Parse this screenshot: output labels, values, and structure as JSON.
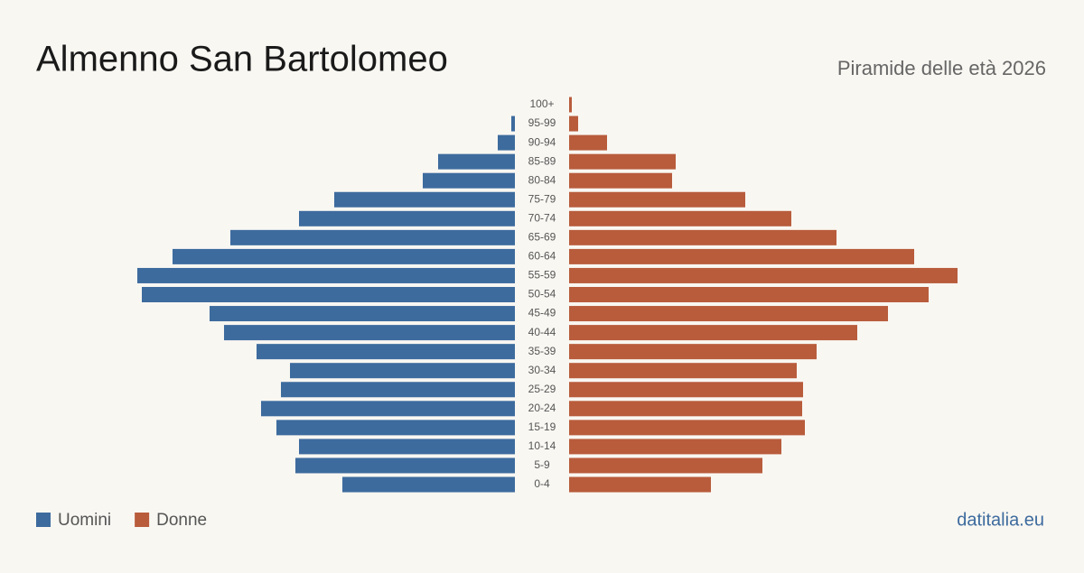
{
  "chart_data": {
    "type": "pyramid",
    "title": "Almenno San Bartolomeo",
    "subtitle": "Piramide delle età 2026",
    "source": "datitalia.eu",
    "categories": [
      "100+",
      "95-99",
      "90-94",
      "85-89",
      "80-84",
      "75-79",
      "70-74",
      "65-69",
      "60-64",
      "55-59",
      "50-54",
      "45-49",
      "40-44",
      "35-39",
      "30-34",
      "25-29",
      "20-24",
      "15-19",
      "10-14",
      "5-9",
      "0-4"
    ],
    "series": [
      {
        "name": "Uomini",
        "color": "#3d6b9e",
        "values": [
          0,
          4,
          19,
          85,
          102,
          200,
          239,
          315,
          379,
          418,
          413,
          338,
          322,
          286,
          249,
          259,
          281,
          264,
          239,
          243,
          191
        ]
      },
      {
        "name": "Donne",
        "color": "#b85c3c",
        "values": [
          3,
          10,
          42,
          118,
          114,
          195,
          246,
          296,
          382,
          430,
          398,
          353,
          319,
          274,
          252,
          259,
          258,
          261,
          235,
          214,
          157
        ]
      }
    ]
  }
}
